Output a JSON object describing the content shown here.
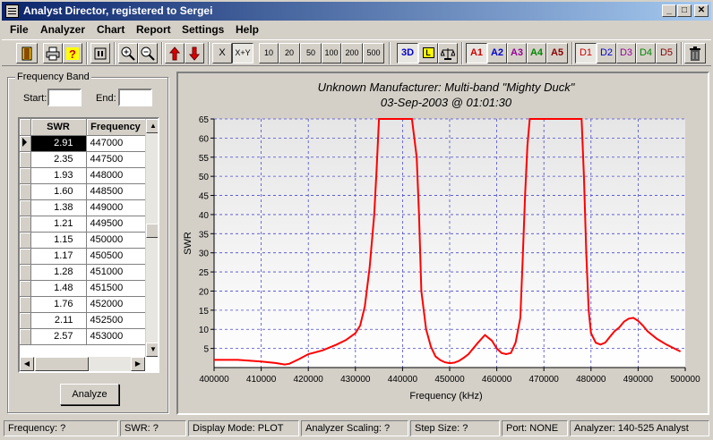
{
  "window": {
    "title": "Analyst Director, registered to Sergei"
  },
  "menu": [
    "File",
    "Analyzer",
    "Chart",
    "Report",
    "Settings",
    "Help"
  ],
  "toolbar": {
    "axis_x": "X",
    "axis_xy": "X+Y",
    "steps": [
      "10",
      "20",
      "50",
      "100",
      "200",
      "500"
    ],
    "view_3d": "3D",
    "view_l": "L",
    "analyzer_buttons": [
      {
        "label": "A1",
        "color": "#cc0000"
      },
      {
        "label": "A2",
        "color": "#0000cc"
      },
      {
        "label": "A3",
        "color": "#990099"
      },
      {
        "label": "A4",
        "color": "#008800"
      },
      {
        "label": "A5",
        "color": "#880000"
      }
    ],
    "data_buttons": [
      {
        "label": "D1",
        "color": "#cc0000"
      },
      {
        "label": "D2",
        "color": "#0000cc"
      },
      {
        "label": "D3",
        "color": "#990099"
      },
      {
        "label": "D4",
        "color": "#008800"
      },
      {
        "label": "D5",
        "color": "#880000"
      }
    ]
  },
  "frequency_band": {
    "title": "Frequency Band",
    "start_label": "Start:",
    "start_value": "",
    "end_label": "End:",
    "end_value": ""
  },
  "table": {
    "headers": [
      "SWR",
      "Frequency"
    ],
    "rows": [
      [
        "2.91",
        "447000"
      ],
      [
        "2.35",
        "447500"
      ],
      [
        "1.93",
        "448000"
      ],
      [
        "1.60",
        "448500"
      ],
      [
        "1.38",
        "449000"
      ],
      [
        "1.21",
        "449500"
      ],
      [
        "1.15",
        "450000"
      ],
      [
        "1.17",
        "450500"
      ],
      [
        "1.28",
        "451000"
      ],
      [
        "1.48",
        "451500"
      ],
      [
        "1.76",
        "452000"
      ],
      [
        "2.11",
        "452500"
      ],
      [
        "2.57",
        "453000"
      ]
    ]
  },
  "analyze_label": "Analyze",
  "chart_data": {
    "type": "line",
    "title": "Unknown Manufacturer: Multi-band \"Mighty Duck\"",
    "subtitle": "03-Sep-2003 @ 01:01:30",
    "xlabel": "Frequency (kHz)",
    "ylabel": "SWR",
    "xlim": [
      400000,
      500000
    ],
    "ylim": [
      0,
      65
    ],
    "xticks": [
      400000,
      410000,
      420000,
      430000,
      440000,
      450000,
      460000,
      470000,
      480000,
      490000,
      500000
    ],
    "yticks": [
      5,
      10,
      15,
      20,
      25,
      30,
      35,
      40,
      45,
      50,
      55,
      60,
      65
    ],
    "grid": true,
    "series": [
      {
        "color": "#ff0000",
        "x": [
          400000,
          402000,
          405000,
          410000,
          413000,
          415000,
          416000,
          418000,
          420000,
          423000,
          426000,
          428000,
          430000,
          431000,
          432000,
          433000,
          434000,
          434500,
          435000,
          436000,
          438000,
          440000,
          442000,
          443000,
          443500,
          444000,
          445000,
          446000,
          447000,
          448000,
          449000,
          450000,
          451000,
          452000,
          453000,
          454000,
          456000,
          457500,
          459000,
          460000,
          461000,
          462000,
          463000,
          464000,
          465000,
          465500,
          466000,
          466500,
          467000,
          470000,
          475000,
          478000,
          478500,
          479000,
          479500,
          480000,
          481000,
          482000,
          483000,
          484000,
          485000,
          486000,
          487000,
          488000,
          489000,
          490000,
          491000,
          492000,
          494000,
          496000,
          498000,
          499000
        ],
        "y": [
          2.0,
          2.0,
          2.0,
          1.6,
          1.2,
          0.8,
          1.0,
          2.2,
          3.5,
          4.5,
          6.0,
          7.2,
          9.0,
          11.0,
          16.0,
          26.0,
          40.0,
          52.0,
          65.0,
          65.0,
          65.0,
          65.0,
          65.0,
          55.0,
          40.0,
          20.0,
          10.0,
          5.5,
          2.91,
          1.93,
          1.38,
          1.15,
          1.28,
          1.76,
          2.57,
          3.5,
          6.5,
          8.5,
          7.0,
          5.0,
          3.8,
          3.5,
          3.8,
          6.5,
          13.0,
          28.0,
          45.0,
          58.0,
          65.0,
          65.0,
          65.0,
          65.0,
          50.0,
          30.0,
          15.0,
          9.0,
          6.5,
          6.0,
          6.5,
          8.0,
          9.5,
          10.5,
          12.0,
          12.8,
          13.0,
          12.2,
          11.0,
          9.5,
          7.5,
          6.0,
          4.8,
          4.2
        ]
      }
    ]
  },
  "status": {
    "frequency": "Frequency: ?",
    "swr": "SWR: ?",
    "display_mode": "Display Mode: PLOT",
    "scaling": "Analyzer Scaling: ?",
    "step_size": "Step Size: ?",
    "port": "Port: NONE",
    "analyzer": "Analyzer: 140-525 Analyst"
  }
}
